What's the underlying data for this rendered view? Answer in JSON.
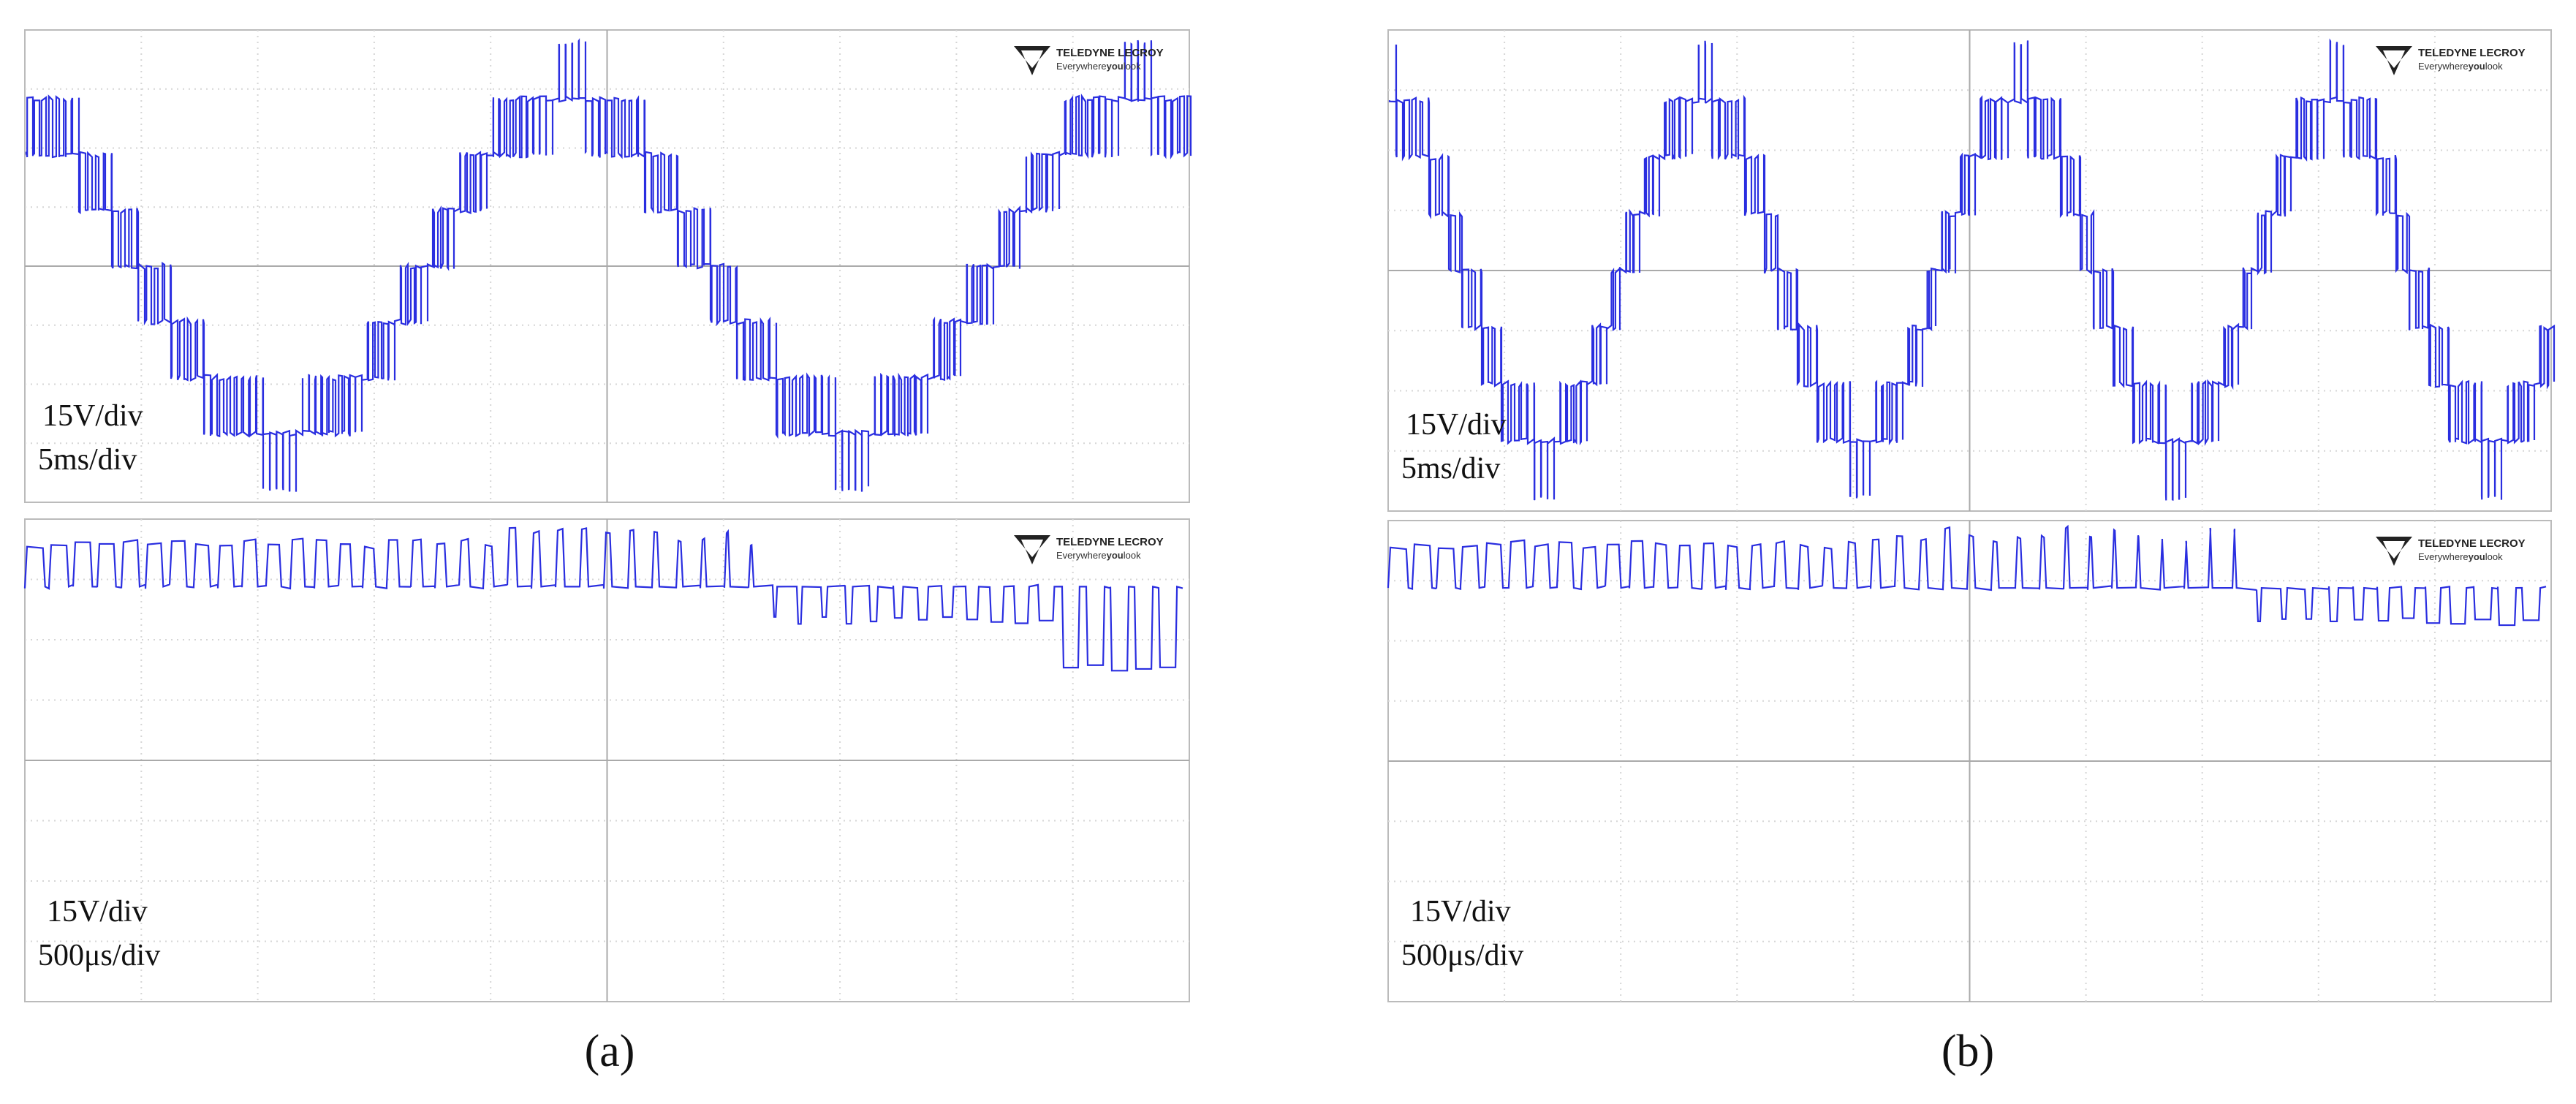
{
  "panels": [
    {
      "caption": "(a)",
      "scopes": [
        {
          "brand": "TELEDYNE LECROY",
          "tagline": [
            "Everywhere",
            "you",
            "look"
          ],
          "volts": "15V/div",
          "time": "5ms/div"
        },
        {
          "brand": "TELEDYNE LECROY",
          "tagline": [
            "Everywhere",
            "you",
            "look"
          ],
          "volts": "15V/div",
          "time": "500μs/div"
        }
      ]
    },
    {
      "caption": "(b)",
      "scopes": [
        {
          "brand": "TELEDYNE LECROY",
          "tagline": [
            "Everywhere",
            "you",
            "look"
          ],
          "volts": "15V/div",
          "time": "5ms/div"
        },
        {
          "brand": "TELEDYNE LECROY",
          "tagline": [
            "Everywhere",
            "you",
            "look"
          ],
          "volts": "15V/div",
          "time": "500μs/div"
        }
      ]
    }
  ]
}
